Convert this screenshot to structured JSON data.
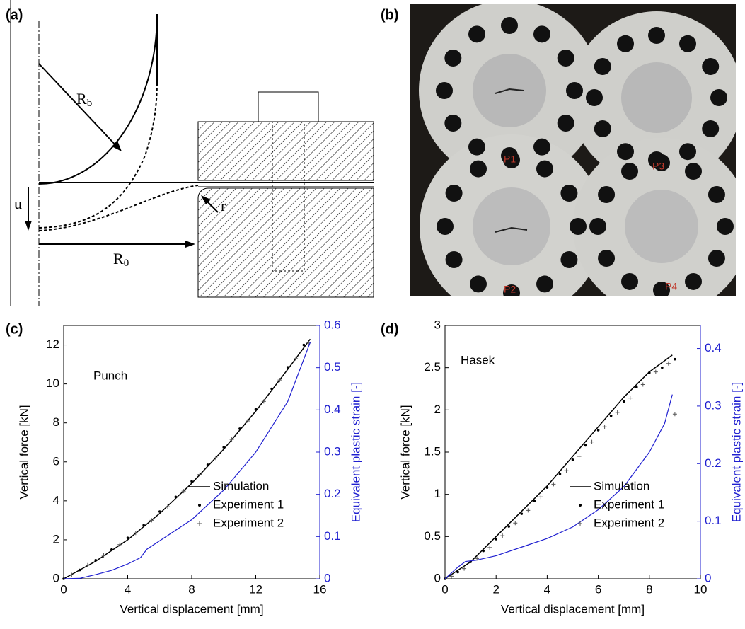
{
  "diagram": {
    "label": "(a)",
    "radius_b": {
      "text": "R",
      "sub": "b"
    },
    "displacement": "u",
    "fillet": "r",
    "radius_0": {
      "text": "R",
      "sub": "0"
    }
  },
  "photo": {
    "label": "(b)",
    "specimens": [
      "P1",
      "P3",
      "P2",
      "P4"
    ]
  },
  "chart_data": [
    {
      "type": "line",
      "label": "(c)",
      "annotation": "Punch",
      "xlabel": "Vertical displacement [mm]",
      "ylabel": "Vertical force [kN]",
      "y2label": "Equivalent plastic strain [-]",
      "xlim": [
        0,
        16
      ],
      "xticks": [
        0,
        4,
        8,
        12,
        16
      ],
      "ylim": [
        0,
        13
      ],
      "yticks": [
        0,
        2,
        4,
        6,
        8,
        10,
        12
      ],
      "y2lim": [
        0,
        0.6
      ],
      "y2ticks": [
        0,
        0.1,
        0.2,
        0.3,
        0.4,
        0.5,
        0.6
      ],
      "legend": "lower right",
      "series": [
        {
          "name": "Simulation",
          "color": "#000000",
          "marker": "line",
          "x": [
            0,
            2,
            4,
            6,
            8,
            10,
            12,
            14,
            15.4
          ],
          "values": [
            0,
            0.9,
            2.0,
            3.35,
            4.9,
            6.65,
            8.6,
            10.75,
            12.3
          ]
        },
        {
          "name": "Experiment 1",
          "color": "#000000",
          "marker": "dot",
          "x": [
            0,
            1,
            2,
            3,
            4,
            5,
            6,
            7,
            8,
            9,
            10,
            11,
            12,
            13,
            14,
            15
          ],
          "values": [
            0,
            0.45,
            0.95,
            1.5,
            2.1,
            2.75,
            3.45,
            4.2,
            5.0,
            5.85,
            6.75,
            7.7,
            8.7,
            9.75,
            10.85,
            12.0
          ]
        },
        {
          "name": "Experiment 2",
          "color": "#555555",
          "marker": "plus",
          "x": [
            0.5,
            1.5,
            2.5,
            3.5,
            4.5,
            5.5,
            6.5,
            7.5,
            8.5,
            9.5,
            10.5,
            11.5,
            12.5,
            13.5,
            14.5,
            15.3
          ],
          "values": [
            0.2,
            0.7,
            1.2,
            1.75,
            2.35,
            3.0,
            3.7,
            4.5,
            5.35,
            6.2,
            7.15,
            8.1,
            9.1,
            10.2,
            11.3,
            12.1
          ]
        },
        {
          "color": "#1f1fd0",
          "marker": "line",
          "axis": "y2",
          "x": [
            0,
            1,
            2,
            3,
            4,
            4.8,
            5.2,
            6,
            8,
            10,
            12,
            14,
            15.4
          ],
          "values": [
            0,
            0.001,
            0.01,
            0.02,
            0.035,
            0.05,
            0.07,
            0.09,
            0.14,
            0.21,
            0.3,
            0.42,
            0.56
          ]
        }
      ]
    },
    {
      "type": "line",
      "label": "(d)",
      "annotation": "Hasek",
      "xlabel": "Vertical displacement [mm]",
      "ylabel": "Vertical force [kN]",
      "y2label": "Equivalent plastic strain [-]",
      "xlim": [
        0,
        10
      ],
      "xticks": [
        0,
        2,
        4,
        6,
        8,
        10
      ],
      "ylim": [
        0,
        3
      ],
      "yticks": [
        0,
        0.5,
        1,
        1.5,
        2,
        2.5,
        3
      ],
      "y2lim": [
        0,
        0.44
      ],
      "y2ticks": [
        0,
        0.1,
        0.2,
        0.3,
        0.4
      ],
      "legend": "lower right",
      "series": [
        {
          "name": "Simulation",
          "color": "#000000",
          "marker": "line",
          "x": [
            0,
            1,
            2,
            3,
            4,
            5,
            6,
            7,
            8,
            8.9
          ],
          "values": [
            0,
            0.2,
            0.5,
            0.8,
            1.1,
            1.45,
            1.8,
            2.15,
            2.45,
            2.65
          ]
        },
        {
          "name": "Experiment 1",
          "color": "#000000",
          "marker": "dot",
          "x": [
            0,
            0.5,
            1,
            1.5,
            2,
            2.5,
            3,
            3.5,
            4,
            4.5,
            5,
            5.5,
            6,
            6.5,
            7,
            7.5,
            8,
            8.5,
            9
          ],
          "values": [
            0,
            0.08,
            0.2,
            0.33,
            0.47,
            0.62,
            0.77,
            0.92,
            1.08,
            1.24,
            1.41,
            1.58,
            1.76,
            1.93,
            2.1,
            2.27,
            2.44,
            2.5,
            2.6
          ]
        },
        {
          "name": "Experiment 2",
          "color": "#555555",
          "marker": "plus",
          "x": [
            0.25,
            0.75,
            1.25,
            1.75,
            2.25,
            2.75,
            3.25,
            3.75,
            4.25,
            4.75,
            5.25,
            5.75,
            6.25,
            6.75,
            7.25,
            7.75,
            8.25,
            8.75,
            9
          ],
          "values": [
            0.03,
            0.12,
            0.24,
            0.37,
            0.51,
            0.66,
            0.81,
            0.97,
            1.12,
            1.28,
            1.45,
            1.62,
            1.8,
            1.97,
            2.14,
            2.3,
            2.45,
            2.55,
            1.95
          ]
        },
        {
          "color": "#1f1fd0",
          "marker": "line",
          "axis": "y2",
          "x": [
            0,
            0.5,
            0.8,
            1.2,
            2,
            3,
            4,
            5,
            6,
            7,
            8,
            8.6,
            8.9
          ],
          "values": [
            0,
            0.02,
            0.03,
            0.032,
            0.04,
            0.055,
            0.07,
            0.09,
            0.12,
            0.16,
            0.22,
            0.27,
            0.32
          ]
        }
      ]
    }
  ]
}
